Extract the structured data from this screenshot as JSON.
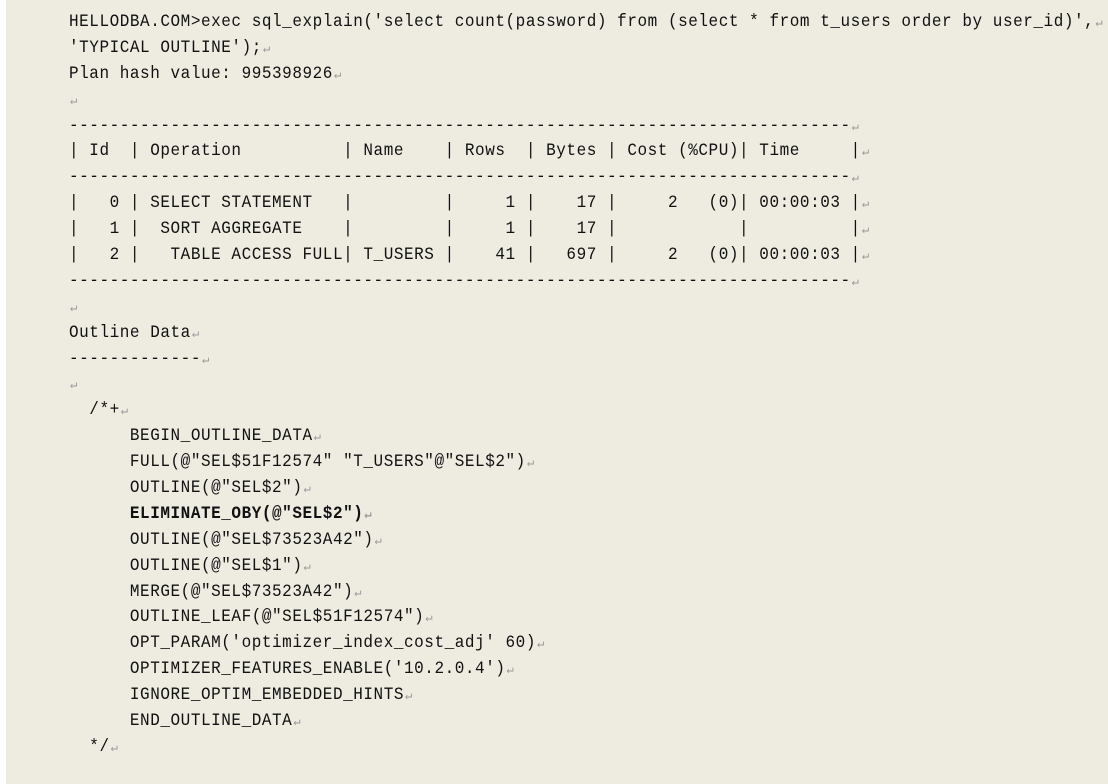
{
  "lines": [
    {
      "text": "HELLODBA.COM>exec sql_explain('select count(password) from (select * from t_users order by user_id)',"
    },
    {
      "text": "'TYPICAL OUTLINE');"
    },
    {
      "text": "Plan hash value: 995398926"
    },
    {
      "text": ""
    },
    {
      "text": "-----------------------------------------------------------------------------"
    },
    {
      "text": "| Id  | Operation          | Name    | Rows  | Bytes | Cost (%CPU)| Time     |"
    },
    {
      "text": "-----------------------------------------------------------------------------"
    },
    {
      "text": "|   0 | SELECT STATEMENT   |         |     1 |    17 |     2   (0)| 00:00:03 |"
    },
    {
      "text": "|   1 |  SORT AGGREGATE    |         |     1 |    17 |            |          |"
    },
    {
      "text": "|   2 |   TABLE ACCESS FULL| T_USERS |    41 |   697 |     2   (0)| 00:00:03 |"
    },
    {
      "text": "-----------------------------------------------------------------------------"
    },
    {
      "text": ""
    },
    {
      "text": "Outline Data"
    },
    {
      "text": "-------------"
    },
    {
      "text": ""
    },
    {
      "text": "  /*+"
    },
    {
      "text": "      BEGIN_OUTLINE_DATA"
    },
    {
      "text": "      FULL(@\"SEL$51F12574\" \"T_USERS\"@\"SEL$2\")"
    },
    {
      "text": "      OUTLINE(@\"SEL$2\")"
    },
    {
      "text": "      ELIMINATE_OBY(@\"SEL$2\")",
      "bold": true
    },
    {
      "text": "      OUTLINE(@\"SEL$73523A42\")"
    },
    {
      "text": "      OUTLINE(@\"SEL$1\")"
    },
    {
      "text": "      MERGE(@\"SEL$73523A42\")"
    },
    {
      "text": "      OUTLINE_LEAF(@\"SEL$51F12574\")"
    },
    {
      "text": "      OPT_PARAM('optimizer_index_cost_adj' 60)"
    },
    {
      "text": "      OPTIMIZER_FEATURES_ENABLE('10.2.0.4')"
    },
    {
      "text": "      IGNORE_OPTIM_EMBEDDED_HINTS"
    },
    {
      "text": "      END_OUTLINE_DATA"
    },
    {
      "text": "  */"
    }
  ],
  "colors": {
    "background": "#eeebe1",
    "text": "#111111",
    "paragraph_mark": "#9a9a9a"
  }
}
